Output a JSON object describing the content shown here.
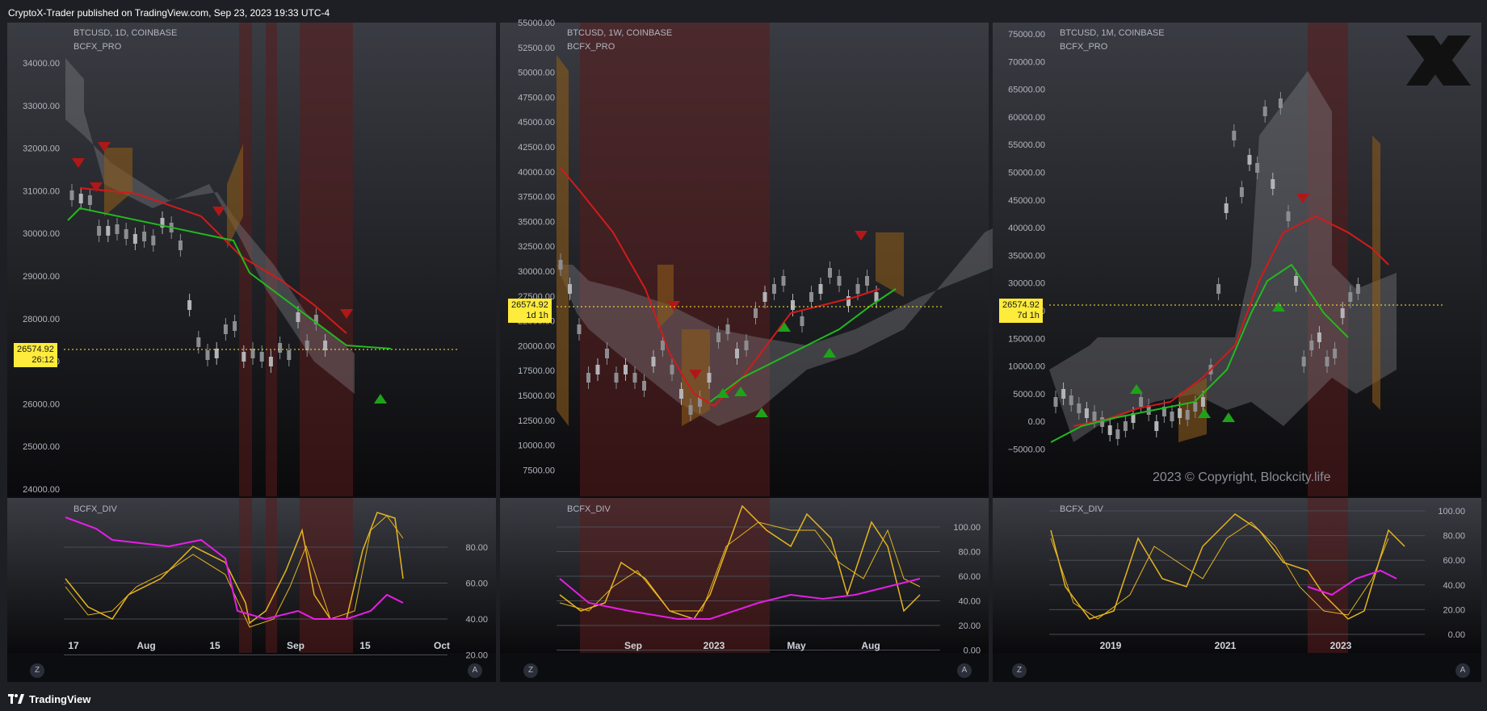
{
  "header": {
    "published_text": "CryptoX-Trader published on TradingView.com, Sep 23, 2023 19:33 UTC-4"
  },
  "footer": {
    "brand": "TradingView"
  },
  "colors": {
    "bull": "#22b91f",
    "bear": "#d11b1b",
    "flat": "#8c8d91",
    "oscillator": "#e6b420",
    "divergence": "#e61ee6",
    "price_tag": "#ffeb3b"
  },
  "panels": [
    {
      "symbol_line": "BTCUSD, 1D, COINBASE",
      "indicator_line": "BCFX_PRO",
      "osc_name": "BCFX_DIV",
      "price_label": "26574.92",
      "countdown": "26:12",
      "price_axis": [
        "34000.00",
        "33000.00",
        "32000.00",
        "31000.00",
        "30000.00",
        "29000.00",
        "28000.00",
        "27000.00",
        "26000.00",
        "25000.00",
        "24000.00"
      ],
      "osc_axis": [
        "80.00",
        "60.00",
        "40.00",
        "20.00"
      ],
      "time_axis": [
        "17",
        "Aug",
        "15",
        "Sep",
        "15",
        "Oct"
      ],
      "z_button": "Z",
      "a_button": "A"
    },
    {
      "symbol_line": "BTCUSD, 1W, COINBASE",
      "indicator_line": "BCFX_PRO",
      "osc_name": "BCFX_DIV",
      "price_label": "26574.92",
      "countdown": "1d 1h",
      "price_axis": [
        "55000.00",
        "52500.00",
        "50000.00",
        "47500.00",
        "45000.00",
        "42500.00",
        "40000.00",
        "37500.00",
        "35000.00",
        "32500.00",
        "30000.00",
        "27500.00",
        "22500.00",
        "20000.00",
        "17500.00",
        "15000.00",
        "12500.00",
        "10000.00",
        "7500.00"
      ],
      "osc_axis": [
        "100.00",
        "80.00",
        "60.00",
        "40.00",
        "20.00",
        "0.00"
      ],
      "time_axis": [
        "Sep",
        "2023",
        "May",
        "Aug"
      ],
      "z_button": "Z",
      "a_button": "A"
    },
    {
      "symbol_line": "BTCUSD, 1M, COINBASE",
      "indicator_line": "BCFX_PRO",
      "osc_name": "BCFX_DIV",
      "price_label": "26574.92",
      "countdown": "7d 1h",
      "price_axis": [
        "75000.00",
        "70000.00",
        "65000.00",
        "60000.00",
        "55000.00",
        "50000.00",
        "45000.00",
        "40000.00",
        "35000.00",
        "30000.00",
        "20000.00",
        "15000.00",
        "10000.00",
        "5000.00",
        "0.00",
        "−5000.00"
      ],
      "osc_axis": [
        "100.00",
        "80.00",
        "60.00",
        "40.00",
        "20.00",
        "0.00"
      ],
      "time_axis": [
        "2019",
        "2021",
        "2023"
      ],
      "copyright": "2023 © Copyright, Blockcity.life",
      "z_button": "Z",
      "a_button": "A"
    }
  ]
}
